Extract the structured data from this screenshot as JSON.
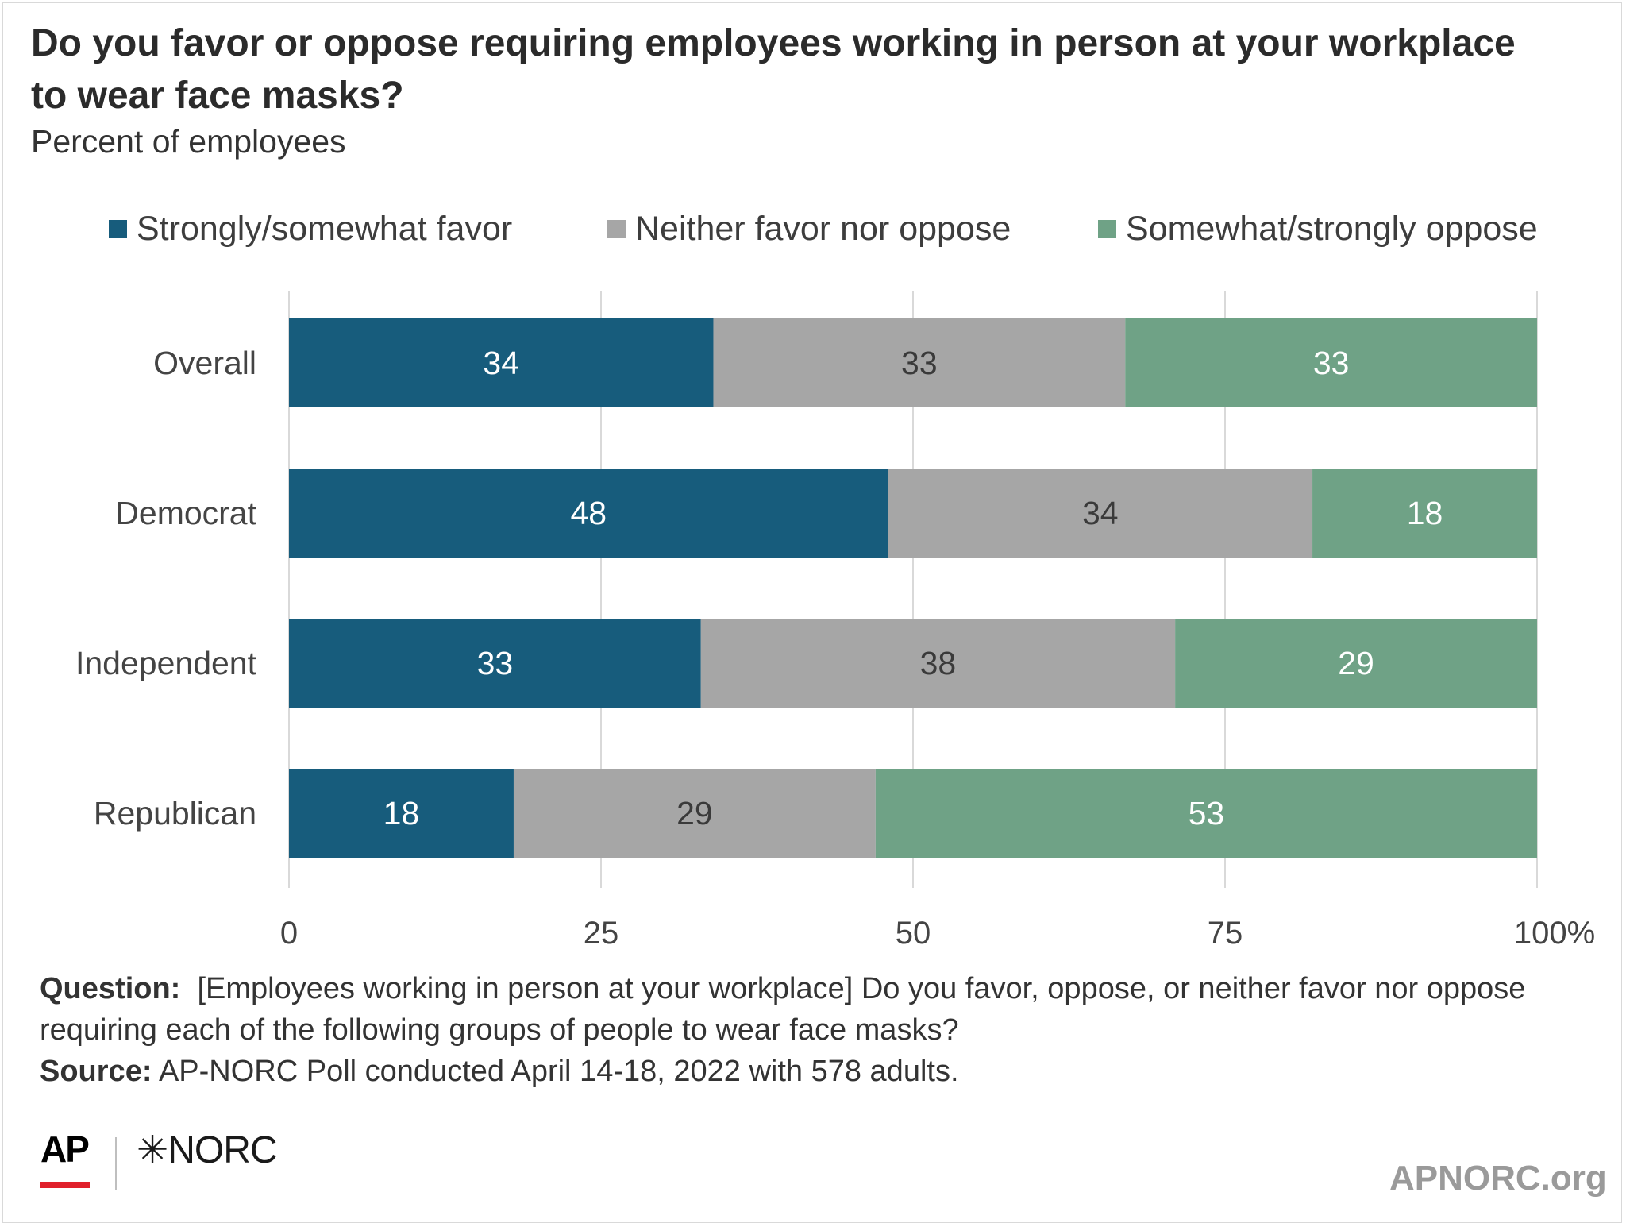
{
  "title": "Do you favor or oppose requiring employees working in person at your workplace to wear face masks?",
  "subtitle": "Percent of employees",
  "colors": {
    "favor": "#175c7c",
    "neither": "#a6a6a6",
    "oppose": "#6fa286",
    "grid": "#d9d9d9"
  },
  "chart_data": {
    "type": "bar",
    "orientation": "horizontal",
    "stacked": true,
    "categories": [
      "Overall",
      "Democrat",
      "Independent",
      "Republican"
    ],
    "series": [
      {
        "name": "Strongly/somewhat favor",
        "values": [
          34,
          48,
          33,
          18
        ]
      },
      {
        "name": "Neither favor nor oppose",
        "values": [
          33,
          34,
          38,
          29
        ]
      },
      {
        "name": "Somewhat/strongly oppose",
        "values": [
          33,
          18,
          29,
          53
        ]
      }
    ],
    "xlim": [
      0,
      100
    ],
    "xticks": [
      "0",
      "25",
      "50",
      "75",
      "100%"
    ],
    "grid": true,
    "legend_position": "top"
  },
  "footer": {
    "question_label": "Question:",
    "question_text": "[Employees working in person at your workplace] Do you favor, oppose, or neither favor nor oppose requiring each of the following groups of people to wear face masks?",
    "source_label": "Source:",
    "source_text": "AP-NORC Poll conducted April 14-18, 2022 with 578 adults."
  },
  "logos": {
    "ap": "AP",
    "norc": "✳NORC",
    "site": "APNORC.org"
  }
}
